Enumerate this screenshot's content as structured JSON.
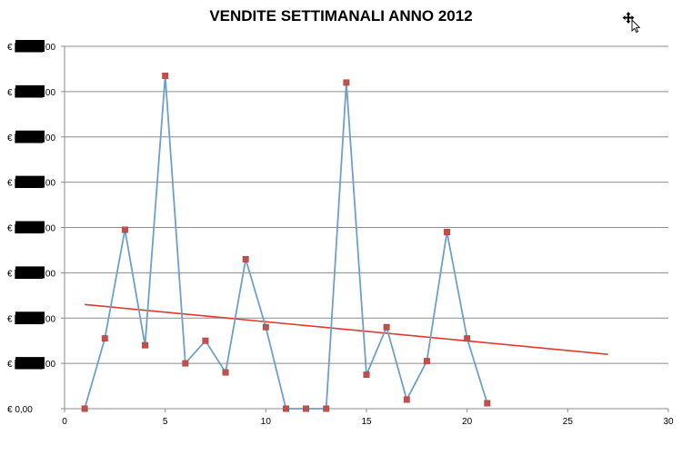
{
  "chart_data": {
    "type": "line",
    "title": "VENDITE SETTIMANALI ANNO 2012",
    "xlabel": "",
    "ylabel": "",
    "xlim": [
      0,
      30
    ],
    "ylim": [
      0,
      8
    ],
    "x_ticks": [
      0,
      5,
      10,
      15,
      20,
      25,
      30
    ],
    "y_tick_labels": [
      "€ 0,00",
      "€ ▇▇▇▇,00",
      "€ ▇▇▇▇,00",
      "€ ▇▇▇▇,00",
      "€ ▇▇▇▇,00",
      "€ ▇▇▇▇,00",
      "€ ▇▇▇▇,00",
      "€ ▇▇▇▇,00",
      "€ ▇▇▇▇,00"
    ],
    "y_labels_redacted": true,
    "grid": "horizontal",
    "legend": "none",
    "series": [
      {
        "x": [
          1,
          2,
          3,
          4,
          5,
          6,
          7,
          8,
          9,
          10,
          11,
          12,
          13,
          14,
          15,
          16,
          17,
          18,
          19,
          20,
          21
        ],
        "values": [
          0,
          1.55,
          3.95,
          1.4,
          7.35,
          1.0,
          1.5,
          0.8,
          3.3,
          1.8,
          0,
          0,
          0,
          7.2,
          0.75,
          1.8,
          0.2,
          1.05,
          3.9,
          1.55,
          0.12
        ]
      }
    ],
    "trendline": {
      "x": [
        1,
        27
      ],
      "values": [
        2.3,
        1.2
      ]
    },
    "colors": {
      "line": "#6f9fcb",
      "marker": "#c0504d",
      "trend": "#e03a2c",
      "grid": "#8c8c8c"
    }
  },
  "cursor_icon": "move-cursor-icon"
}
